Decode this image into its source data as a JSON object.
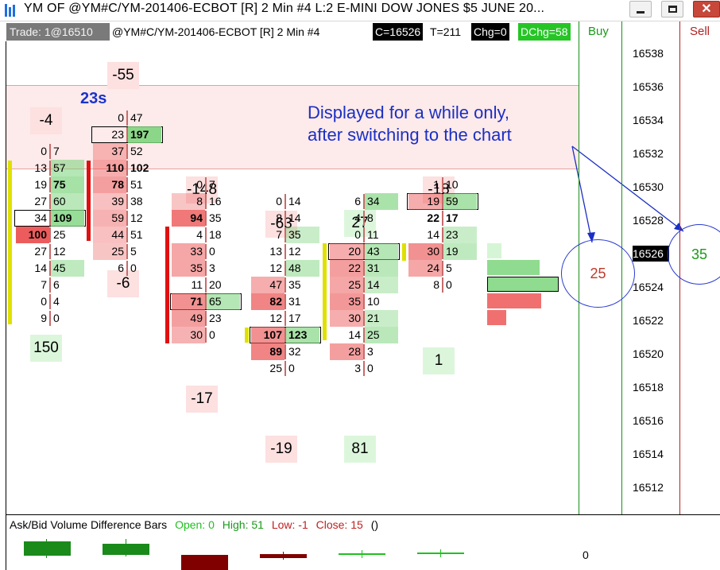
{
  "window": {
    "title": "YM OF   @YM#C/YM-201406-ECBOT [R]   2 Min   #4  L:2  E-MINI DOW JONES $5 JUNE 20...",
    "min_icon": "minimize-icon",
    "max_icon": "maximize-icon",
    "close_icon": "close-icon",
    "close_glyph": "✕"
  },
  "infobar": {
    "trade": "Trade: 1@16510",
    "symbol": "@YM#C/YM-201406-ECBOT [R]  2 Min   #4",
    "close": "C=16526",
    "ticks": "T=211",
    "chg": "Chg=0",
    "dchg": "DChg=58"
  },
  "ladder": {
    "buy_label": "Buy",
    "sell_label": "Sell",
    "prices": [
      "16538",
      "16536",
      "16534",
      "16532",
      "16530",
      "16528",
      "16526",
      "16524",
      "16522",
      "16520",
      "16518",
      "16516",
      "16514",
      "16512"
    ],
    "current_price": "16526",
    "buy_circle": "25",
    "sell_circle": "35"
  },
  "annotation": {
    "line1": "Displayed for a while only,",
    "line2": "after switching to the chart"
  },
  "timer": "23s",
  "bars": [
    {
      "top_delta": "-4",
      "bottom_delta": "150",
      "rows": [
        {
          "ask": "0",
          "bid": "7"
        },
        {
          "ask": "13",
          "bid": "57"
        },
        {
          "ask": "19",
          "bid": "75"
        },
        {
          "ask": "27",
          "bid": "60"
        },
        {
          "ask": "34",
          "bid": "109"
        },
        {
          "ask": "100",
          "bid": "25"
        },
        {
          "ask": "27",
          "bid": "12"
        },
        {
          "ask": "14",
          "bid": "45"
        },
        {
          "ask": "7",
          "bid": "6"
        },
        {
          "ask": "0",
          "bid": "4"
        },
        {
          "ask": "9",
          "bid": "0"
        }
      ]
    },
    {
      "top_delta": "-55",
      "bottom_delta": "-6",
      "rows": [
        {
          "ask": "0",
          "bid": "47"
        },
        {
          "ask": "23",
          "bid": "197"
        },
        {
          "ask": "37",
          "bid": "52"
        },
        {
          "ask": "110",
          "bid": "102"
        },
        {
          "ask": "78",
          "bid": "51"
        },
        {
          "ask": "39",
          "bid": "38"
        },
        {
          "ask": "59",
          "bid": "12"
        },
        {
          "ask": "44",
          "bid": "51"
        },
        {
          "ask": "25",
          "bid": "5"
        },
        {
          "ask": "6",
          "bid": "0"
        }
      ]
    },
    {
      "top_delta": "-148",
      "bottom_delta": "-17",
      "rows": [
        {
          "ask": "0",
          "bid": "7"
        },
        {
          "ask": "8",
          "bid": "16"
        },
        {
          "ask": "94",
          "bid": "35"
        },
        {
          "ask": "4",
          "bid": "18"
        },
        {
          "ask": "33",
          "bid": "0"
        },
        {
          "ask": "35",
          "bid": "3"
        },
        {
          "ask": "11",
          "bid": "20"
        },
        {
          "ask": "71",
          "bid": "65"
        },
        {
          "ask": "49",
          "bid": "23"
        },
        {
          "ask": "30",
          "bid": "0"
        }
      ]
    },
    {
      "top_delta": "-63",
      "bottom_delta": "-19",
      "rows": [
        {
          "ask": "0",
          "bid": "14"
        },
        {
          "ask": "8",
          "bid": "14"
        },
        {
          "ask": "7",
          "bid": "35"
        },
        {
          "ask": "13",
          "bid": "12"
        },
        {
          "ask": "12",
          "bid": "48"
        },
        {
          "ask": "47",
          "bid": "35"
        },
        {
          "ask": "82",
          "bid": "31"
        },
        {
          "ask": "12",
          "bid": "17"
        },
        {
          "ask": "107",
          "bid": "123"
        },
        {
          "ask": "89",
          "bid": "32"
        },
        {
          "ask": "25",
          "bid": "0"
        }
      ]
    },
    {
      "top_delta": "27",
      "bottom_delta": "81",
      "rows": [
        {
          "ask": "6",
          "bid": "34"
        },
        {
          "ask": "4",
          "bid": "8"
        },
        {
          "ask": "0",
          "bid": "11"
        },
        {
          "ask": "20",
          "bid": "43"
        },
        {
          "ask": "22",
          "bid": "31"
        },
        {
          "ask": "25",
          "bid": "14"
        },
        {
          "ask": "35",
          "bid": "10"
        },
        {
          "ask": "30",
          "bid": "21"
        },
        {
          "ask": "14",
          "bid": "25"
        },
        {
          "ask": "28",
          "bid": "3"
        },
        {
          "ask": "3",
          "bid": "0"
        }
      ]
    },
    {
      "top_delta": "-18",
      "bottom_delta": "1",
      "rows": [
        {
          "ask": "1",
          "bid": "10"
        },
        {
          "ask": "19",
          "bid": "59"
        },
        {
          "ask": "22",
          "bid": "17"
        },
        {
          "ask": "14",
          "bid": "23"
        },
        {
          "ask": "30",
          "bid": "19"
        },
        {
          "ask": "24",
          "bid": "5"
        },
        {
          "ask": "8",
          "bid": "0"
        }
      ]
    }
  ],
  "indicator": {
    "name": "Ask/Bid Volume Difference Bars",
    "open": "Open: 0",
    "high": "High: 51",
    "low": "Low: -1",
    "close": "Close: 15",
    "extra": "()",
    "zero_label": "0"
  },
  "colors": {
    "ask_fill": "#f08080",
    "bid_fill": "#90e090",
    "buy_green": "#1a9a1a",
    "sell_red": "#b22222",
    "annotation_blue": "#1b2fc4"
  }
}
